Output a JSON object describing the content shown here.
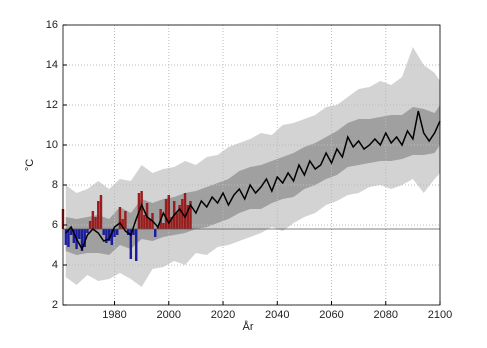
{
  "chart_data": {
    "type": "line",
    "xlabel": "År",
    "ylabel": "°C",
    "xlim": [
      1961,
      2100
    ],
    "ylim": [
      2,
      16
    ],
    "xticks": [
      1980,
      2000,
      2020,
      2040,
      2060,
      2080,
      2100
    ],
    "yticks": [
      2,
      4,
      6,
      8,
      10,
      12,
      14,
      16
    ],
    "grid": true,
    "baseline": 5.8,
    "bands": [
      {
        "color": "#d3d3d3",
        "x": [
          1962,
          1966,
          1970,
          1974,
          1978,
          1982,
          1986,
          1990,
          1994,
          1998,
          2002,
          2006,
          2010,
          2014,
          2018,
          2022,
          2026,
          2030,
          2034,
          2038,
          2042,
          2046,
          2050,
          2054,
          2058,
          2062,
          2066,
          2070,
          2074,
          2078,
          2082,
          2086,
          2090,
          2094,
          2098,
          2100
        ],
        "low": [
          3.4,
          3.0,
          3.5,
          3.2,
          3.3,
          3.6,
          3.3,
          2.9,
          3.8,
          3.9,
          4.2,
          4.0,
          4.6,
          4.5,
          4.9,
          5.0,
          5.2,
          5.4,
          5.6,
          5.9,
          5.7,
          6.1,
          6.4,
          6.6,
          7.0,
          7.2,
          7.5,
          7.6,
          7.9,
          8.0,
          7.8,
          8.0,
          8.3,
          7.6,
          8.3,
          8.6
        ],
        "high": [
          8.0,
          7.6,
          7.8,
          8.2,
          7.8,
          8.3,
          8.2,
          9.0,
          8.6,
          8.8,
          8.9,
          9.2,
          9.0,
          9.4,
          9.5,
          9.9,
          10.1,
          10.3,
          10.6,
          10.5,
          11.0,
          11.1,
          11.3,
          11.5,
          11.9,
          12.0,
          12.4,
          12.8,
          12.9,
          13.2,
          13.0,
          13.4,
          14.9,
          14.0,
          13.6,
          13.2
        ]
      },
      {
        "color": "#a0a0a0",
        "x": [
          1962,
          1966,
          1970,
          1974,
          1978,
          1982,
          1986,
          1990,
          1994,
          1998,
          2002,
          2006,
          2010,
          2014,
          2018,
          2022,
          2026,
          2030,
          2034,
          2038,
          2042,
          2046,
          2050,
          2054,
          2058,
          2062,
          2066,
          2070,
          2074,
          2078,
          2082,
          2086,
          2090,
          2094,
          2098,
          2100
        ],
        "low": [
          4.7,
          4.5,
          4.6,
          4.6,
          4.5,
          5.0,
          4.8,
          5.3,
          5.2,
          5.4,
          5.5,
          5.6,
          5.8,
          5.9,
          6.1,
          6.3,
          6.6,
          6.8,
          6.8,
          7.1,
          7.3,
          7.4,
          7.8,
          8.0,
          8.3,
          8.5,
          8.9,
          9.0,
          9.1,
          9.2,
          9.2,
          9.3,
          9.5,
          9.5,
          9.6,
          10.0
        ],
        "high": [
          6.4,
          6.3,
          6.4,
          6.5,
          6.3,
          6.9,
          6.6,
          7.3,
          7.1,
          7.3,
          7.4,
          7.6,
          7.7,
          7.9,
          8.1,
          8.3,
          8.7,
          8.9,
          9.0,
          9.2,
          9.4,
          9.6,
          9.9,
          10.1,
          10.4,
          10.7,
          11.1,
          11.3,
          11.3,
          11.4,
          11.5,
          11.5,
          11.9,
          11.8,
          11.6,
          12.0
        ]
      }
    ],
    "bars": {
      "above_color": "#9b1c1c",
      "below_color": "#1c1c9b",
      "x": [
        1961,
        1962,
        1963,
        1964,
        1965,
        1966,
        1967,
        1968,
        1969,
        1970,
        1971,
        1972,
        1973,
        1974,
        1975,
        1976,
        1977,
        1978,
        1979,
        1980,
        1981,
        1982,
        1983,
        1984,
        1985,
        1986,
        1987,
        1988,
        1989,
        1990,
        1991,
        1992,
        1993,
        1994,
        1995,
        1996,
        1997,
        1998,
        1999,
        2000,
        2001,
        2002,
        2003,
        2004,
        2005,
        2006,
        2007,
        2008
      ],
      "values": [
        6.8,
        5.0,
        4.9,
        5.5,
        5.1,
        4.8,
        5.3,
        4.7,
        4.9,
        5.6,
        6.2,
        6.7,
        6.4,
        7.2,
        7.5,
        5.5,
        5.1,
        5.2,
        5.0,
        5.4,
        5.5,
        6.9,
        6.3,
        6.7,
        5.5,
        4.3,
        5.5,
        4.2,
        7.6,
        7.7,
        6.5,
        7.1,
        6.3,
        6.6,
        5.4,
        5.9,
        6.8,
        6.1,
        7.3,
        7.5,
        6.4,
        7.2,
        6.6,
        7.0,
        7.3,
        7.6,
        7.0,
        7.2
      ]
    },
    "line": {
      "color": "#000000",
      "x": [
        1962,
        1964,
        1966,
        1968,
        1970,
        1972,
        1974,
        1976,
        1978,
        1980,
        1982,
        1984,
        1986,
        1988,
        1990,
        1992,
        1994,
        1996,
        1998,
        2000,
        2002,
        2004,
        2006,
        2008,
        2010,
        2012,
        2014,
        2016,
        2018,
        2020,
        2022,
        2024,
        2026,
        2028,
        2030,
        2032,
        2034,
        2036,
        2038,
        2040,
        2042,
        2044,
        2046,
        2048,
        2050,
        2052,
        2054,
        2056,
        2058,
        2060,
        2062,
        2064,
        2066,
        2068,
        2070,
        2072,
        2074,
        2076,
        2078,
        2080,
        2082,
        2084,
        2086,
        2088,
        2090,
        2092,
        2094,
        2096,
        2098,
        2100
      ],
      "values": [
        5.6,
        5.9,
        5.3,
        4.8,
        5.5,
        5.8,
        5.6,
        5.2,
        5.3,
        5.9,
        6.1,
        5.7,
        5.5,
        6.3,
        7.0,
        6.4,
        6.2,
        5.9,
        6.6,
        6.1,
        6.5,
        6.8,
        6.4,
        7.0,
        6.6,
        7.2,
        6.9,
        7.4,
        7.1,
        7.6,
        7.0,
        7.5,
        7.8,
        7.3,
        8.0,
        7.6,
        7.9,
        8.3,
        7.7,
        8.4,
        8.1,
        8.6,
        8.2,
        9.0,
        8.5,
        9.2,
        8.8,
        9.0,
        9.6,
        9.1,
        9.8,
        9.4,
        10.4,
        9.9,
        10.2,
        9.8,
        10.0,
        10.3,
        10.0,
        10.6,
        10.1,
        10.4,
        10.0,
        10.7,
        10.3,
        11.7,
        10.6,
        10.2,
        10.6,
        11.2
      ]
    }
  }
}
